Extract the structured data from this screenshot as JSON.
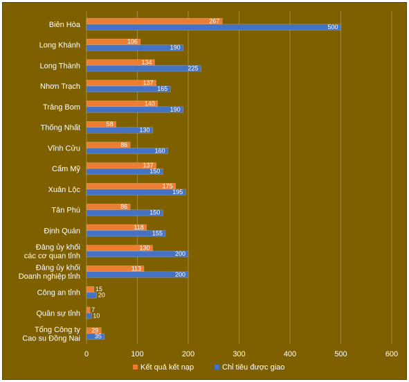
{
  "chart_data": {
    "type": "bar",
    "orientation": "horizontal",
    "categories": [
      "Biên Hòa",
      "Long Khánh",
      "Long Thành",
      "Nhơn Trạch",
      "Trảng Bom",
      "Thống Nhất",
      "Vĩnh Cửu",
      "Cẩm Mỹ",
      "Xuân Lộc",
      "Tân Phú",
      "Định Quán",
      "Đảng ủy khối\ncác cơ quan tỉnh",
      "Đảng ủy khối\nDoanh nghiệp tỉnh",
      "Công an tỉnh",
      "Quân sự tỉnh",
      "Tổng Công ty\nCao su Đồng Nai"
    ],
    "series": [
      {
        "name": "Kết quả kết nạp",
        "color": "#ed7d31",
        "values": [
          267,
          106,
          134,
          137,
          140,
          58,
          86,
          137,
          175,
          86,
          118,
          130,
          113,
          15,
          7,
          29
        ]
      },
      {
        "name": "Chỉ tiêu được giao",
        "color": "#4472c4",
        "values": [
          500,
          190,
          225,
          165,
          190,
          130,
          160,
          150,
          195,
          150,
          155,
          200,
          200,
          20,
          10,
          35
        ]
      }
    ],
    "xlim": [
      0,
      600
    ],
    "xticks": [
      0,
      100,
      200,
      300,
      400,
      500,
      600
    ],
    "grid": true,
    "legend_position": "bottom",
    "data_labels": true
  }
}
